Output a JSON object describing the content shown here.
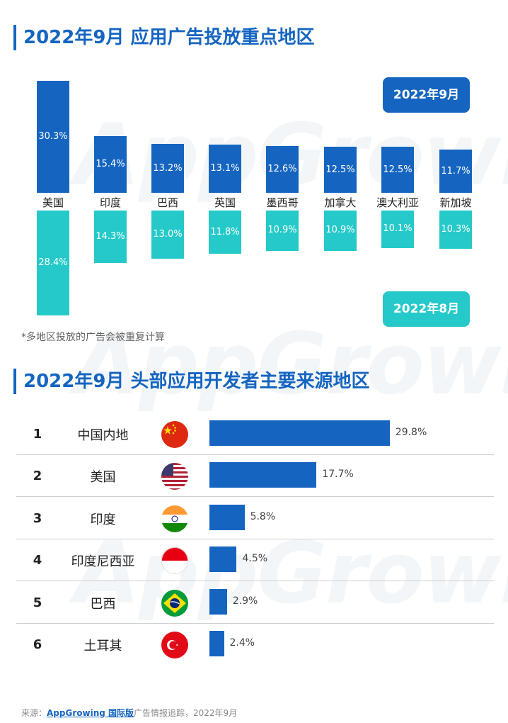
{
  "section1": {
    "title": "2022年9月 应用广告投放重点地区",
    "badge_sep": "2022年9月",
    "badge_aug": "2022年8月",
    "note": "*多地区投放的广告会被重复计算"
  },
  "section2": {
    "title": "2022年9月 头部应用开发者主要来源地区"
  },
  "watermark": "AppGrowing",
  "colors": {
    "sep": "#1565c0",
    "aug": "#26c9c9",
    "rank_bar": "#1565c0",
    "title": "#1565c0"
  },
  "chart_data": [
    {
      "type": "bar",
      "categories": [
        "美国",
        "印度",
        "巴西",
        "英国",
        "墨西哥",
        "加拿大",
        "澳大利亚",
        "新加坡"
      ],
      "series": [
        {
          "name": "2022年9月",
          "values": [
            30.3,
            15.4,
            13.2,
            13.1,
            12.6,
            12.5,
            12.5,
            11.7
          ]
        },
        {
          "name": "2022年8月",
          "values": [
            28.4,
            14.3,
            13.0,
            11.8,
            10.9,
            10.9,
            10.1,
            10.3
          ]
        }
      ],
      "value_labels": {
        "sep": [
          "30.3%",
          "15.4%",
          "13.2%",
          "13.1%",
          "12.6%",
          "12.5%",
          "12.5%",
          "11.7%"
        ],
        "aug": [
          "28.4%",
          "14.3%",
          "13.0%",
          "11.8%",
          "10.9%",
          "10.9%",
          "10.1%",
          "10.3%"
        ]
      },
      "unit": "%"
    },
    {
      "type": "bar",
      "orientation": "horizontal",
      "ranks": [
        "1",
        "2",
        "3",
        "4",
        "5",
        "6"
      ],
      "categories": [
        "中国内地",
        "美国",
        "印度",
        "印度尼西亚",
        "巴西",
        "土耳其"
      ],
      "flags": [
        "china-flag-icon",
        "usa-flag-icon",
        "india-flag-icon",
        "indonesia-flag-icon",
        "brazil-flag-icon",
        "turkey-flag-icon"
      ],
      "values": [
        29.8,
        17.7,
        5.8,
        4.5,
        2.9,
        2.4
      ],
      "value_labels": [
        "29.8%",
        "17.7%",
        "5.8%",
        "4.5%",
        "2.9%",
        "2.4%"
      ],
      "unit": "%"
    }
  ],
  "footer": {
    "prefix": "来源：",
    "brand": "AppGrowing 国际版",
    "suffix": "广告情报追踪，2022年9月"
  }
}
